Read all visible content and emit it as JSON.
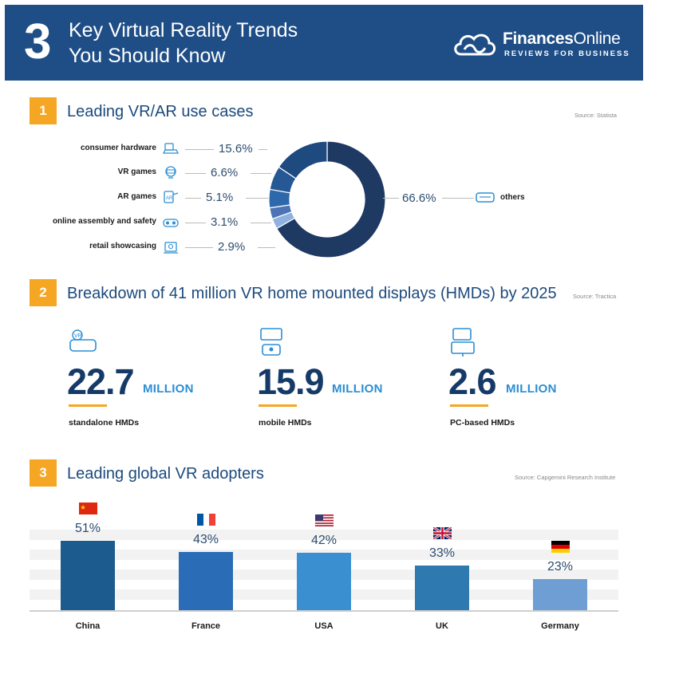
{
  "header": {
    "number": "3",
    "title_line1": "Key Virtual Reality Trends",
    "title_line2": "You Should Know",
    "logo_name_bold": "Finances",
    "logo_name_rest": "Online",
    "logo_tagline": "REVIEWS FOR BUSINESS",
    "logo_icon": "cloud-icon"
  },
  "section1": {
    "number": "1",
    "title": "Leading VR/AR use cases",
    "source": "Source: Statista"
  },
  "section2": {
    "number": "2",
    "title": "Breakdown of 41 million VR home mounted displays (HMDs) by 2025",
    "source": "Source: Tractica",
    "stats": [
      {
        "value": "22.7",
        "unit": "MILLION",
        "label": "standalone HMDs",
        "icon": "vr-headset-icon"
      },
      {
        "value": "15.9",
        "unit": "MILLION",
        "label": "mobile HMDs",
        "icon": "mobile-vr-icon"
      },
      {
        "value": "2.6",
        "unit": "MILLION",
        "label": "PC-based HMDs",
        "icon": "pc-vr-icon"
      }
    ]
  },
  "section3": {
    "number": "3",
    "title": "Leading global VR adopters",
    "source": "Source: Capgemini Research Institute"
  },
  "chart_data": [
    {
      "type": "pie",
      "title": "Leading VR/AR use cases",
      "slices": [
        {
          "label": "others",
          "value": 66.6,
          "display": "66.6%",
          "color": "#1e3a63",
          "icon": "vr-goggles-icon"
        },
        {
          "label": "consumer hardware",
          "value": 15.6,
          "display": "15.6%",
          "color": "#1f4a80",
          "icon": "hardware-icon"
        },
        {
          "label": "VR games",
          "value": 6.6,
          "display": "6.6%",
          "color": "#255894",
          "icon": "vr-games-icon"
        },
        {
          "label": "AR games",
          "value": 5.1,
          "display": "5.1%",
          "color": "#2d68ab",
          "icon": "ar-games-icon"
        },
        {
          "label": "online assembly and safety",
          "value": 3.1,
          "display": "3.1%",
          "color": "#4b73b6",
          "icon": "assembly-icon"
        },
        {
          "label": "retail showcasing",
          "value": 2.9,
          "display": "2.9%",
          "color": "#8fb1e0",
          "icon": "retail-icon"
        }
      ]
    },
    {
      "type": "bar",
      "title": "Leading global VR adopters",
      "categories": [
        "China",
        "France",
        "USA",
        "UK",
        "Germany"
      ],
      "values": [
        51,
        43,
        42,
        33,
        23
      ],
      "labels": [
        "51%",
        "43%",
        "42%",
        "33%",
        "23%"
      ],
      "colors": [
        "#1c5b8e",
        "#2a6db6",
        "#3a8fd1",
        "#2e7ab0",
        "#6f9ed4"
      ],
      "flags": [
        "china-flag-icon",
        "france-flag-icon",
        "usa-flag-icon",
        "uk-flag-icon",
        "germany-flag-icon"
      ],
      "ylim": [
        0,
        100
      ]
    }
  ]
}
